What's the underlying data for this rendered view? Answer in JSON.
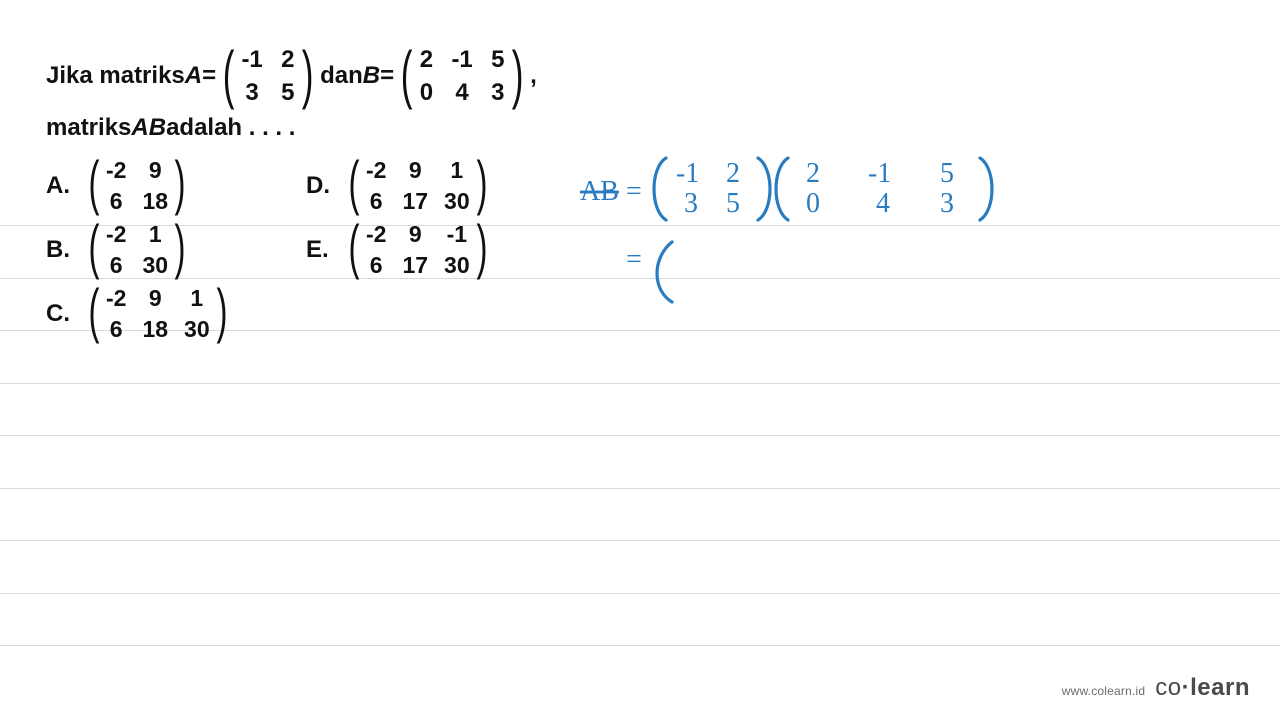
{
  "ruled_line_positions": [
    225,
    278,
    330,
    383,
    435,
    488,
    540,
    593,
    645
  ],
  "ruled_line_color": "#d9d9d9",
  "background_color": "#ffffff",
  "text_color": "#111111",
  "handwriting_color": "#2a7cc0",
  "question": {
    "prefix": "Jika matriks ",
    "A_symbol": "A",
    "equals1": " = ",
    "dan": " dan ",
    "B_symbol": "B",
    "equals2": " = ",
    "comma": ",",
    "line2_prefix": "matriks ",
    "AB_symbol": "AB",
    "line2_suffix": " adalah . . . .",
    "matrix_A": {
      "rows": 2,
      "cols": 2,
      "values": [
        [
          "-1",
          "2"
        ],
        [
          "3",
          "5"
        ]
      ]
    },
    "matrix_B": {
      "rows": 2,
      "cols": 3,
      "values": [
        [
          "2",
          "-1",
          "5"
        ],
        [
          "0",
          "4",
          "3"
        ]
      ]
    }
  },
  "options": {
    "A": {
      "label": "A.",
      "rows": 2,
      "cols": 2,
      "values": [
        [
          "-2",
          "9"
        ],
        [
          "6",
          "18"
        ]
      ]
    },
    "B": {
      "label": "B.",
      "rows": 2,
      "cols": 2,
      "values": [
        [
          "-2",
          "1"
        ],
        [
          "6",
          "30"
        ]
      ]
    },
    "C": {
      "label": "C.",
      "rows": 2,
      "cols": 3,
      "values": [
        [
          "-2",
          "9",
          "1"
        ],
        [
          "6",
          "18",
          "30"
        ]
      ]
    },
    "D": {
      "label": "D.",
      "rows": 2,
      "cols": 3,
      "values": [
        [
          "-2",
          "9",
          "1"
        ],
        [
          "6",
          "17",
          "30"
        ]
      ]
    },
    "E": {
      "label": "E.",
      "rows": 2,
      "cols": 3,
      "values": [
        [
          "-2",
          "9",
          "-1"
        ],
        [
          "6",
          "17",
          "30"
        ]
      ]
    }
  },
  "handwriting": {
    "lhs": "AB",
    "eq": "=",
    "m1": {
      "rows": 2,
      "cols": 2,
      "values": [
        [
          "-1",
          "2"
        ],
        [
          "3",
          "5"
        ]
      ]
    },
    "m2": {
      "rows": 2,
      "cols": 3,
      "values": [
        [
          "2",
          "-1",
          "5"
        ],
        [
          "0",
          "4",
          "3"
        ]
      ]
    },
    "line2_eq": "="
  },
  "footer": {
    "url": "www.colearn.id",
    "brand_co": "co",
    "brand_dot": "·",
    "brand_learn": "learn"
  }
}
